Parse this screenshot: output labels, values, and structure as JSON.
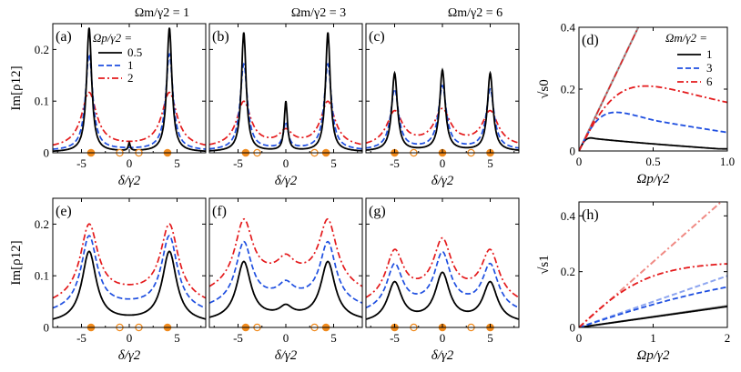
{
  "figure": {
    "column_titles": [
      "Ωm/γ2 = 1",
      "Ωm/γ2 = 3",
      "Ωm/γ2 = 6"
    ],
    "colors": {
      "black": "#000000",
      "blue": "#1f4fe0",
      "red": "#e41a1c",
      "light_red": "#f08a84",
      "light_blue": "#8ea6f0",
      "gray": "#999999",
      "marker": "#f08a1c"
    }
  },
  "chart_data": [
    {
      "id": "a",
      "panel_label": "(a)",
      "type": "line",
      "xlabel": "δ/γ2",
      "ylabel": "Im[ρ12]",
      "xlim": [
        -8,
        8
      ],
      "ylim": [
        0,
        0.25
      ],
      "xticks": [
        -5,
        0,
        5
      ],
      "yticks": [
        0,
        0.1,
        0.2
      ],
      "legend_title": "Ωp/γ2 =",
      "series": [
        {
          "name": "0.5",
          "style": "solid",
          "color": "black",
          "peaks": [
            {
              "x": -4.2,
              "h": 0.24,
              "w": 0.32
            },
            {
              "x": 4.2,
              "h": 0.24,
              "w": 0.32
            },
            {
              "x": 0,
              "h": 0.015,
              "w": 0.12
            }
          ],
          "base": 0.002
        },
        {
          "name": "1",
          "style": "dashed",
          "color": "blue",
          "peaks": [
            {
              "x": -4.2,
              "h": 0.185,
              "w": 0.45
            },
            {
              "x": 4.2,
              "h": 0.185,
              "w": 0.45
            }
          ],
          "base": 0.006
        },
        {
          "name": "2",
          "style": "dashdot",
          "color": "red",
          "peaks": [
            {
              "x": -4.2,
              "h": 0.105,
              "w": 0.95
            },
            {
              "x": 4.2,
              "h": 0.105,
              "w": 0.95
            }
          ],
          "base": 0.012
        }
      ],
      "markers_filled": [
        -4,
        4
      ],
      "markers_open": [
        -1,
        1
      ]
    },
    {
      "id": "b",
      "panel_label": "(b)",
      "type": "line",
      "xlabel": "δ/γ2",
      "ylabel": "",
      "xlim": [
        -8,
        8
      ],
      "ylim": [
        0,
        0.25
      ],
      "xticks": [
        -5,
        0,
        5
      ],
      "yticks": [
        0,
        0.1,
        0.2
      ],
      "series": [
        {
          "name": "0.5",
          "style": "solid",
          "color": "black",
          "peaks": [
            {
              "x": -4.4,
              "h": 0.23,
              "w": 0.3
            },
            {
              "x": 4.4,
              "h": 0.23,
              "w": 0.3
            },
            {
              "x": 0,
              "h": 0.095,
              "w": 0.2
            }
          ],
          "base": 0.003
        },
        {
          "name": "1",
          "style": "dashed",
          "color": "blue",
          "peaks": [
            {
              "x": -4.4,
              "h": 0.165,
              "w": 0.45
            },
            {
              "x": 4.4,
              "h": 0.165,
              "w": 0.45
            },
            {
              "x": 0,
              "h": 0.05,
              "w": 0.3
            }
          ],
          "base": 0.007
        },
        {
          "name": "2",
          "style": "dashdot",
          "color": "red",
          "peaks": [
            {
              "x": -4.4,
              "h": 0.085,
              "w": 0.9
            },
            {
              "x": 4.4,
              "h": 0.085,
              "w": 0.9
            },
            {
              "x": 0,
              "h": 0.025,
              "w": 0.8
            }
          ],
          "base": 0.015
        }
      ],
      "markers_filled": [
        -4.2,
        4.2
      ],
      "markers_open": [
        -3,
        3
      ]
    },
    {
      "id": "c",
      "panel_label": "(c)",
      "type": "line",
      "xlabel": "δ/γ2",
      "ylabel": "",
      "xlim": [
        -8,
        8
      ],
      "ylim": [
        0,
        0.25
      ],
      "xticks": [
        -5,
        0,
        5
      ],
      "yticks": [
        0,
        0.1,
        0.2
      ],
      "series": [
        {
          "name": "0.5",
          "style": "solid",
          "color": "black",
          "peaks": [
            {
              "x": -5,
              "h": 0.15,
              "w": 0.35
            },
            {
              "x": 5,
              "h": 0.15,
              "w": 0.35
            },
            {
              "x": 0,
              "h": 0.155,
              "w": 0.35
            }
          ],
          "base": 0.004
        },
        {
          "name": "1",
          "style": "dashed",
          "color": "blue",
          "peaks": [
            {
              "x": -5,
              "h": 0.115,
              "w": 0.5
            },
            {
              "x": 5,
              "h": 0.115,
              "w": 0.5
            },
            {
              "x": 0,
              "h": 0.12,
              "w": 0.5
            }
          ],
          "base": 0.008
        },
        {
          "name": "2",
          "style": "dashdot",
          "color": "red",
          "peaks": [
            {
              "x": -5,
              "h": 0.065,
              "w": 1.0
            },
            {
              "x": 5,
              "h": 0.065,
              "w": 1.0
            },
            {
              "x": 0,
              "h": 0.065,
              "w": 1.0
            }
          ],
          "base": 0.016
        }
      ],
      "markers_filled": [
        -5,
        0,
        5
      ],
      "markers_open": [
        -3,
        3
      ]
    },
    {
      "id": "d",
      "panel_label": "(d)",
      "type": "line",
      "xlabel": "Ωp/γ2",
      "ylabel": "√s0",
      "xlim": [
        0,
        1
      ],
      "ylim": [
        0,
        0.4
      ],
      "xticks": [
        0,
        0.5,
        1.0
      ],
      "xtick_labels": [
        "0",
        "0.5",
        "1.0"
      ],
      "yticks": [
        0,
        0.2,
        0.4
      ],
      "ytick_labels": [
        "0",
        "0.2",
        "0.4"
      ],
      "legend_title": "Ωm/γ2 =",
      "series": [
        {
          "name": "1",
          "style": "solid",
          "color": "black",
          "peak_x": 0.08,
          "peak_y": 0.042,
          "end_y": 0.005
        },
        {
          "name": "3",
          "style": "dashed",
          "color": "blue",
          "peak_x": 0.25,
          "peak_y": 0.125,
          "end_y": 0.06
        },
        {
          "name": "6",
          "style": "dashdot",
          "color": "red",
          "peak_x": 0.45,
          "peak_y": 0.21,
          "end_y": 0.15
        }
      ],
      "asymptote_slope": 1.0
    },
    {
      "id": "e",
      "panel_label": "(e)",
      "type": "line",
      "xlabel": "δ/γ2",
      "ylabel": "Im[ρ12]",
      "xlim": [
        -8,
        8
      ],
      "ylim": [
        0,
        0.25
      ],
      "xticks": [
        -5,
        0,
        5
      ],
      "yticks": [
        0,
        0.1,
        0.2
      ],
      "series": [
        {
          "name": "0.5",
          "style": "solid",
          "color": "black",
          "peaks": [
            {
              "x": -4.2,
              "h": 0.135,
              "w": 0.9
            },
            {
              "x": 4.2,
              "h": 0.135,
              "w": 0.9
            }
          ],
          "base": 0.012
        },
        {
          "name": "1",
          "style": "dashed",
          "color": "blue",
          "peaks": [
            {
              "x": -4.2,
              "h": 0.14,
              "w": 1.0
            },
            {
              "x": 4.2,
              "h": 0.14,
              "w": 1.0
            }
          ],
          "base": 0.04
        },
        {
          "name": "2",
          "style": "dashdot",
          "color": "red",
          "peaks": [
            {
              "x": -4.2,
              "h": 0.14,
              "w": 1.1
            },
            {
              "x": 4.2,
              "h": 0.14,
              "w": 1.1
            }
          ],
          "base": 0.065
        }
      ],
      "markers_filled": [
        -4,
        4
      ],
      "markers_open": [
        -1,
        1
      ]
    },
    {
      "id": "f",
      "panel_label": "(f)",
      "type": "line",
      "xlabel": "δ/γ2",
      "ylabel": "",
      "xlim": [
        -8,
        8
      ],
      "ylim": [
        0,
        0.25
      ],
      "xticks": [
        -5,
        0,
        5
      ],
      "yticks": [
        0,
        0.1,
        0.2
      ],
      "series": [
        {
          "name": "0.5",
          "style": "solid",
          "color": "black",
          "peaks": [
            {
              "x": -4.4,
              "h": 0.11,
              "w": 0.9
            },
            {
              "x": 4.4,
              "h": 0.11,
              "w": 0.9
            },
            {
              "x": 0,
              "h": 0.018,
              "w": 0.8
            }
          ],
          "base": 0.018
        },
        {
          "name": "1",
          "style": "dashed",
          "color": "blue",
          "peaks": [
            {
              "x": -4.4,
              "h": 0.115,
              "w": 1.0
            },
            {
              "x": 4.4,
              "h": 0.115,
              "w": 1.0
            },
            {
              "x": 0,
              "h": 0.025,
              "w": 0.9
            }
          ],
          "base": 0.055
        },
        {
          "name": "2",
          "style": "dashdot",
          "color": "red",
          "peaks": [
            {
              "x": -4.4,
              "h": 0.12,
              "w": 1.1
            },
            {
              "x": 4.4,
              "h": 0.12,
              "w": 1.1
            },
            {
              "x": 0,
              "h": 0.03,
              "w": 1.0
            }
          ],
          "base": 0.098
        }
      ],
      "markers_filled": [
        -4.2,
        4.2
      ],
      "markers_open": [
        -3,
        3
      ]
    },
    {
      "id": "g",
      "panel_label": "(g)",
      "type": "line",
      "xlabel": "δ/γ2",
      "ylabel": "",
      "xlim": [
        -8,
        8
      ],
      "ylim": [
        0,
        0.25
      ],
      "xticks": [
        -5,
        0,
        5
      ],
      "yticks": [
        0,
        0.1,
        0.2
      ],
      "series": [
        {
          "name": "0.5",
          "style": "solid",
          "color": "black",
          "peaks": [
            {
              "x": -5,
              "h": 0.075,
              "w": 0.9
            },
            {
              "x": 5,
              "h": 0.075,
              "w": 0.9
            },
            {
              "x": 0,
              "h": 0.09,
              "w": 0.9
            }
          ],
          "base": 0.012
        },
        {
          "name": "1",
          "style": "dashed",
          "color": "blue",
          "peaks": [
            {
              "x": -5,
              "h": 0.085,
              "w": 1.0
            },
            {
              "x": 5,
              "h": 0.085,
              "w": 1.0
            },
            {
              "x": 0,
              "h": 0.1,
              "w": 1.0
            }
          ],
          "base": 0.04
        },
        {
          "name": "2",
          "style": "dashdot",
          "color": "red",
          "peaks": [
            {
              "x": -5,
              "h": 0.09,
              "w": 1.1
            },
            {
              "x": 5,
              "h": 0.09,
              "w": 1.1
            },
            {
              "x": 0,
              "h": 0.1,
              "w": 1.1
            }
          ],
          "base": 0.065
        }
      ],
      "markers_filled": [
        -5,
        0,
        5
      ],
      "markers_open": [
        -3,
        3
      ]
    },
    {
      "id": "h",
      "panel_label": "(h)",
      "type": "line",
      "xlabel": "Ωp/γ2",
      "ylabel": "√s1",
      "xlim": [
        0,
        2
      ],
      "ylim": [
        0,
        0.45
      ],
      "xticks": [
        0,
        1,
        2
      ],
      "xtick_labels": [
        "0",
        "1",
        "2"
      ],
      "yticks": [
        0,
        0.2,
        0.4
      ],
      "ytick_labels": [
        "0",
        "0.2",
        "0.4"
      ],
      "series": [
        {
          "name": "1",
          "style": "solid",
          "color": "black",
          "end_y": 0.075,
          "asym_slope": 0.04
        },
        {
          "name": "3",
          "style": "dashed",
          "color": "blue",
          "end_y": 0.145,
          "asym_slope": 0.09
        },
        {
          "name": "6",
          "style": "dashdot",
          "color": "red",
          "end_y": 0.235,
          "asym_slope": 0.235
        }
      ]
    }
  ]
}
